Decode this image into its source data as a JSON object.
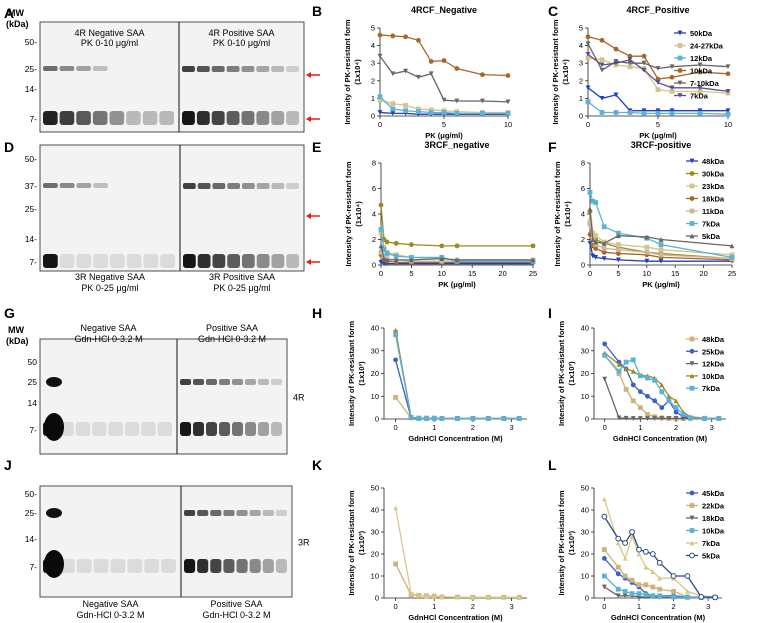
{
  "figure": {
    "panel_letters": [
      "A",
      "B",
      "C",
      "D",
      "E",
      "F",
      "G",
      "H",
      "I",
      "J",
      "K",
      "L"
    ],
    "blots": [
      {
        "id": "A",
        "mw_title": "MW",
        "mw_unit": "(kDa)",
        "mw_ticks": [
          "50-",
          "25-",
          "14-",
          "7-"
        ],
        "label_left": "4R Negative SAA\nPK 0-10 μg/ml",
        "label_right": "4R Positive SAA\nPK 0-10 μg/ml",
        "label_pos": "top",
        "side_label": ""
      },
      {
        "id": "D",
        "mw_title": "",
        "mw_unit": "",
        "mw_ticks": [
          "50-",
          "37-",
          "25-",
          "14-",
          "7-"
        ],
        "label_left": "3R Negative SAA\nPK 0-25 μg/ml",
        "label_right": "3R Positive SAA\nPK 0-25 μg/ml",
        "label_pos": "bottom",
        "side_label": ""
      },
      {
        "id": "G",
        "mw_title": "MW",
        "mw_unit": "(kDa)",
        "mw_ticks": [
          "50",
          "25",
          "14",
          "7-"
        ],
        "label_left": "Negative SAA\nGdn-HCl 0-3.2 M",
        "label_right": "Positive SAA\nGdn-HCl 0-3.2 M",
        "label_pos": "top",
        "side_label": "4R"
      },
      {
        "id": "J",
        "mw_title": "",
        "mw_unit": "",
        "mw_ticks": [
          "50-",
          "25-",
          "14-",
          "7-"
        ],
        "label_left": "Negative SAA\nGdn-HCl 0-3.2 M",
        "label_right": "Positive SAA\nGdn-HCl 0-3.2 M",
        "label_pos": "bottom",
        "side_label": "3R"
      }
    ],
    "axis_labels": {
      "pk_ylabel_line1": "Intensity of PK-resistant form",
      "pk_ylabel_line2": "(1x10⁴)",
      "gdn_ylabel_line1": "Intensity of PK-resistant form",
      "gdn_ylabel_line2": "(1x10³)"
    }
  },
  "chart_data": [
    {
      "panel": "B",
      "type": "line",
      "title": "4RCF_Negative",
      "xlabel": "PK (μg/ml)",
      "ylabel": "Intensity of PK-resistant form (1x10⁴)",
      "x": [
        0,
        1,
        2,
        3,
        4,
        5,
        6,
        8,
        10
      ],
      "xlim": [
        0,
        10
      ],
      "ylim": [
        0,
        5
      ],
      "xticks": [
        0,
        5,
        10
      ],
      "yticks": [
        0,
        1,
        2,
        3,
        4,
        5
      ],
      "series": [
        {
          "name": "50kDa",
          "color": "#1f3fbf",
          "marker": "v",
          "values": [
            0.2,
            0.15,
            0.15,
            0.1,
            0.1,
            0.1,
            0.1,
            0.1,
            0.1
          ]
        },
        {
          "name": "24-27kDa",
          "color": "#d2c48a",
          "marker": "s",
          "values": [
            0.9,
            0.7,
            0.6,
            0.4,
            0.35,
            0.3,
            0.25,
            0.2,
            0.2
          ]
        },
        {
          "name": "12kDa",
          "color": "#5ab3d6",
          "marker": "s",
          "values": [
            1.1,
            0.4,
            0.3,
            0.25,
            0.2,
            0.2,
            0.15,
            0.15,
            0.15
          ]
        },
        {
          "name": "10kDa",
          "color": "#a8662a",
          "marker": "o",
          "values": [
            4.6,
            4.55,
            4.5,
            4.3,
            3.1,
            3.15,
            2.7,
            2.35,
            2.3
          ]
        },
        {
          "name": "7-10kDa",
          "color": "#666666",
          "marker": "v",
          "values": [
            3.4,
            2.4,
            2.55,
            2.2,
            2.4,
            0.9,
            0.85,
            0.85,
            0.8
          ]
        }
      ]
    },
    {
      "panel": "C",
      "type": "line",
      "title": "4RCF_Positive",
      "xlabel": "PK (μg/ml)",
      "ylabel": "Intensity of PK-resistant form (1x10⁴)",
      "x": [
        0,
        1,
        2,
        3,
        4,
        5,
        6,
        8,
        10
      ],
      "xlim": [
        0,
        10
      ],
      "ylim": [
        0,
        5
      ],
      "xticks": [
        0,
        5,
        10
      ],
      "yticks": [
        0,
        1,
        2,
        3,
        4,
        5
      ],
      "series": [
        {
          "name": "50kDa",
          "color": "#1f3fbf",
          "marker": "v",
          "values": [
            1.6,
            1.0,
            1.2,
            0.3,
            0.3,
            0.3,
            0.3,
            0.3,
            0.3
          ]
        },
        {
          "name": "24-27kDa",
          "color": "#d2c48a",
          "marker": "s",
          "values": [
            3.3,
            3.2,
            2.9,
            2.8,
            2.7,
            1.5,
            1.4,
            1.4,
            1.3
          ]
        },
        {
          "name": "12kDa",
          "color": "#5ab3d6",
          "marker": "s",
          "values": [
            0.8,
            0.2,
            0.2,
            0.2,
            0.15,
            0.15,
            0.15,
            0.15,
            0.1
          ]
        },
        {
          "name": "10kDa",
          "color": "#a8662a",
          "marker": "o",
          "values": [
            4.5,
            4.3,
            3.8,
            3.4,
            3.4,
            2.1,
            2.2,
            2.5,
            2.4
          ]
        },
        {
          "name": "7-10kDa",
          "color": "#666666",
          "marker": "v",
          "values": [
            4.1,
            2.6,
            3.1,
            3.0,
            3.0,
            2.7,
            2.8,
            2.9,
            2.8
          ]
        },
        {
          "name": "7kDa",
          "color": "#5a4f8c",
          "marker": "v",
          "values": [
            3.5,
            2.9,
            3.0,
            3.2,
            2.6,
            1.9,
            1.6,
            1.6,
            1.4
          ]
        }
      ]
    },
    {
      "panel": "E",
      "type": "line",
      "title": "3RCF_negative",
      "xlabel": "PK (μg/ml)",
      "ylabel": "Intensity of PK-resistant form (1x10⁴)",
      "x": [
        0,
        0.5,
        1,
        2.5,
        5,
        10,
        12.5,
        25
      ],
      "xlim": [
        0,
        25
      ],
      "ylim": [
        0,
        8
      ],
      "xticks": [
        0,
        5,
        10,
        15,
        20,
        25
      ],
      "yticks": [
        0,
        2,
        4,
        6,
        8
      ],
      "series": [
        {
          "name": "48kDa",
          "color": "#1f3fbf",
          "marker": "v",
          "values": [
            0.2,
            0.1,
            0.1,
            0.1,
            0.1,
            0.1,
            0.1,
            0.1
          ]
        },
        {
          "name": "30kDa",
          "color": "#9c8a1e",
          "marker": "o",
          "values": [
            4.7,
            2.0,
            1.8,
            1.7,
            1.6,
            1.5,
            1.5,
            1.5
          ]
        },
        {
          "name": "23kDa",
          "color": "#d2c48a",
          "marker": "s",
          "values": [
            2.5,
            1.4,
            1.0,
            0.8,
            0.6,
            0.5,
            0.4,
            0.4
          ]
        },
        {
          "name": "18kDa",
          "color": "#a8662a",
          "marker": "o",
          "values": [
            0.8,
            0.4,
            0.3,
            0.2,
            0.2,
            0.2,
            0.2,
            0.2
          ]
        },
        {
          "name": "11kDa",
          "color": "#ccb79a",
          "marker": "s",
          "values": [
            1.0,
            0.7,
            0.5,
            0.4,
            0.3,
            0.3,
            0.3,
            0.3
          ]
        },
        {
          "name": "7kDa",
          "color": "#5ab3d6",
          "marker": "s",
          "values": [
            2.8,
            1.2,
            0.9,
            0.7,
            0.6,
            0.6,
            0.3,
            0.3
          ]
        },
        {
          "name": "5kDa",
          "color": "#666666",
          "marker": "^",
          "values": [
            1.5,
            0.5,
            0.4,
            0.4,
            0.4,
            0.5,
            0.4,
            0.4
          ]
        }
      ]
    },
    {
      "panel": "F",
      "type": "line",
      "title": "3RCF-positive",
      "xlabel": "PK (μg/ml)",
      "ylabel": "Intensity of PK-resistant form (1x10⁴)",
      "x": [
        0,
        0.5,
        1,
        2.5,
        5,
        10,
        12.5,
        25
      ],
      "xlim": [
        0,
        25
      ],
      "ylim": [
        0,
        8
      ],
      "xticks": [
        0,
        5,
        10,
        15,
        20,
        25
      ],
      "yticks": [
        0,
        2,
        4,
        6,
        8
      ],
      "series": [
        {
          "name": "48kDa",
          "color": "#1f3fbf",
          "marker": "v",
          "values": [
            1.7,
            0.7,
            0.6,
            0.5,
            0.4,
            0.3,
            0.3,
            0.3
          ]
        },
        {
          "name": "30kDa",
          "color": "#9c8a1e",
          "marker": "o",
          "values": [
            4.2,
            2.5,
            2.0,
            1.7,
            1.4,
            1.0,
            0.9,
            0.5
          ]
        },
        {
          "name": "23kDa",
          "color": "#d2c48a",
          "marker": "s",
          "values": [
            3.4,
            2.5,
            2.3,
            1.8,
            1.6,
            1.4,
            1.2,
            0.8
          ]
        },
        {
          "name": "18kDa",
          "color": "#a8662a",
          "marker": "o",
          "values": [
            2.4,
            1.5,
            1.3,
            1.0,
            0.9,
            0.8,
            0.6,
            0.4
          ]
        },
        {
          "name": "11kDa",
          "color": "#ccb79a",
          "marker": "s",
          "values": [
            3.2,
            2.0,
            1.6,
            1.3,
            1.2,
            1.0,
            0.8,
            0.5
          ]
        },
        {
          "name": "7kDa",
          "color": "#5ab3d6",
          "marker": "s",
          "values": [
            5.7,
            5.0,
            4.9,
            3.0,
            2.5,
            2.1,
            1.6,
            0.6
          ]
        },
        {
          "name": "5kDa",
          "color": "#666666",
          "marker": "^",
          "values": [
            4.4,
            2.0,
            1.8,
            1.7,
            2.3,
            2.2,
            2.0,
            1.5
          ]
        }
      ]
    },
    {
      "panel": "H",
      "type": "line",
      "title": "",
      "xlabel": "GdnHCl Concentration (M)",
      "ylabel": "Intensity of PK-resistant form (1x10³)",
      "x": [
        0,
        0.4,
        0.6,
        0.8,
        1.0,
        1.2,
        1.6,
        2.0,
        2.4,
        2.8,
        3.2
      ],
      "xlim": [
        -0.3,
        3.4
      ],
      "ylim": [
        0,
        40
      ],
      "xticks": [
        0,
        1,
        2,
        3
      ],
      "yticks": [
        0,
        10,
        20,
        30,
        40
      ],
      "series": [
        {
          "name": "48kDa",
          "color": "#d2b07a",
          "marker": "s",
          "values": [
            9.5,
            0.5,
            0.3,
            0.3,
            0.3,
            0.2,
            0.2,
            0.2,
            0.2,
            0.2,
            0.2
          ]
        },
        {
          "name": "25kDa",
          "color": "#3a62c4",
          "marker": "o",
          "values": [
            26,
            0.5,
            0.3,
            0.3,
            0.3,
            0.2,
            0.2,
            0.2,
            0.2,
            0.2,
            0.2
          ]
        },
        {
          "name": "12kDa",
          "color": "#666666",
          "marker": "v",
          "values": [
            38,
            0.6,
            0.3,
            0.3,
            0.3,
            0.2,
            0.2,
            0.2,
            0.2,
            0.2,
            0.2
          ]
        },
        {
          "name": "10kDa",
          "color": "#9c8a1e",
          "marker": "^",
          "values": [
            39,
            0.7,
            0.3,
            0.3,
            0.3,
            0.2,
            0.2,
            0.2,
            0.2,
            0.2,
            0.2
          ]
        },
        {
          "name": "7kDa",
          "color": "#5ab3d6",
          "marker": "s",
          "values": [
            37,
            0.6,
            0.3,
            0.3,
            0.3,
            0.2,
            0.2,
            0.2,
            0.2,
            0.2,
            0.2
          ]
        }
      ]
    },
    {
      "panel": "I",
      "type": "line",
      "title": "",
      "xlabel": "GdnHCl Concentration (M)",
      "ylabel": "Intensity of PK-resistant form (1x10³)",
      "x": [
        0,
        0.4,
        0.6,
        0.8,
        1.0,
        1.2,
        1.4,
        1.6,
        1.8,
        2.0,
        2.2,
        2.4,
        2.8,
        3.2
      ],
      "xlim": [
        -0.3,
        3.4
      ],
      "ylim": [
        0,
        40
      ],
      "xticks": [
        0,
        1,
        2,
        3
      ],
      "yticks": [
        0,
        10,
        20,
        30,
        40
      ],
      "series": [
        {
          "name": "48kDa",
          "color": "#d2b07a",
          "marker": "s",
          "values": [
            28,
            20,
            13,
            8,
            5,
            2,
            1,
            0.5,
            0.3,
            0.2,
            0.2,
            0.2,
            0.2,
            0.2
          ]
        },
        {
          "name": "25kDa",
          "color": "#3a62c4",
          "marker": "o",
          "values": [
            33,
            25,
            22,
            15,
            12,
            10,
            8,
            5,
            8,
            3,
            1,
            0.5,
            0.3,
            0.2
          ]
        },
        {
          "name": "12kDa",
          "color": "#666666",
          "marker": "v",
          "values": [
            17.5,
            0.5,
            0.3,
            0.2,
            0.2,
            0.2,
            0.2,
            0.2,
            0.2,
            0.2,
            0.2,
            0.2,
            0.2,
            0.2
          ]
        },
        {
          "name": "10kDa",
          "color": "#9c8a1e",
          "marker": "^",
          "values": [
            29,
            24,
            22,
            21,
            19,
            19,
            18,
            15,
            10,
            8,
            3,
            1,
            0.3,
            0.2
          ]
        },
        {
          "name": "7kDa",
          "color": "#5ab3d6",
          "marker": "s",
          "values": [
            28,
            21,
            25,
            26,
            19,
            18,
            17,
            12,
            8,
            5,
            2,
            0.5,
            0.3,
            0.2
          ]
        }
      ]
    },
    {
      "panel": "K",
      "type": "line",
      "title": "",
      "xlabel": "GdnHCl Concentration (M)",
      "ylabel": "Intensity of PK-resistant form (1x10³)",
      "x": [
        0,
        0.4,
        0.6,
        0.8,
        1.0,
        1.2,
        1.6,
        2.0,
        2.4,
        2.8,
        3.2
      ],
      "xlim": [
        -0.3,
        3.4
      ],
      "ylim": [
        0,
        50
      ],
      "xticks": [
        0,
        1,
        2,
        3
      ],
      "yticks": [
        0,
        10,
        20,
        30,
        40,
        50
      ],
      "series": [
        {
          "name": "22kDa",
          "color": "#d2b07a",
          "marker": "s",
          "values": [
            15.5,
            1.5,
            1.2,
            1.0,
            0.8,
            0.5,
            0.4,
            0.3,
            0.3,
            0.3,
            0.3
          ]
        },
        {
          "name": "7kDa",
          "color": "#d8c88a",
          "marker": "^",
          "values": [
            41,
            2,
            1.2,
            1.0,
            0.8,
            0.5,
            0.4,
            0.3,
            0.3,
            0.3,
            0.3
          ]
        }
      ]
    },
    {
      "panel": "L",
      "type": "line",
      "title": "",
      "xlabel": "GdnHCl Concentration (M)",
      "ylabel": "Intensity of PK-resistant form (1x10³)",
      "x": [
        0,
        0.4,
        0.6,
        0.8,
        1.0,
        1.2,
        1.4,
        1.6,
        2.0,
        2.4,
        2.8,
        3.2
      ],
      "xlim": [
        -0.3,
        3.4
      ],
      "ylim": [
        0,
        50
      ],
      "xticks": [
        0,
        1,
        2,
        3
      ],
      "yticks": [
        0,
        10,
        20,
        30,
        40,
        50
      ],
      "series": [
        {
          "name": "45kDa",
          "color": "#3a62c4",
          "marker": "o",
          "values": [
            18,
            11,
            9,
            7,
            5,
            2,
            1,
            1,
            1,
            0.5,
            0.3,
            0.2
          ]
        },
        {
          "name": "22kDa",
          "color": "#d2b07a",
          "marker": "s",
          "values": [
            22,
            14,
            10,
            8,
            6,
            6,
            5,
            4,
            3,
            0.5,
            0.3,
            0.2
          ]
        },
        {
          "name": "18kDa",
          "color": "#666666",
          "marker": "v",
          "values": [
            5,
            1,
            1,
            1,
            0.5,
            0.5,
            0.5,
            0.3,
            0.3,
            0.3,
            0.3,
            0.2
          ]
        },
        {
          "name": "10kDa",
          "color": "#5ab3d6",
          "marker": "s",
          "values": [
            10,
            4,
            3,
            2,
            2,
            1.5,
            1,
            1,
            0.5,
            0.3,
            0.2,
            0.2
          ]
        },
        {
          "name": "7kDa",
          "color": "#d8c88a",
          "marker": "^",
          "values": [
            45,
            25,
            18,
            28,
            20,
            14,
            12,
            9,
            9,
            3,
            1,
            0.5
          ]
        },
        {
          "name": "5kDa",
          "color": "#2a4a8a",
          "marker": "o-open",
          "values": [
            37,
            27,
            25,
            30,
            22,
            21,
            20,
            16,
            10,
            10,
            0.5,
            0.3
          ]
        }
      ]
    }
  ]
}
